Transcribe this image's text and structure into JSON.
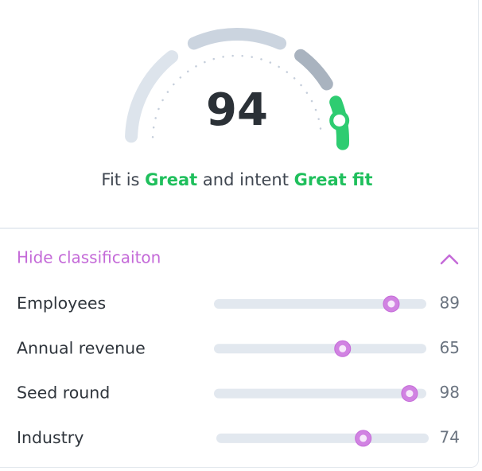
{
  "gauge": {
    "score": 94,
    "range": [
      0,
      100
    ],
    "summary": [
      "Fit is",
      "Great",
      "and intent",
      "Great fit"
    ]
  },
  "classification": {
    "toggle": "Hide classificaiton",
    "range": [
      0,
      100
    ],
    "rows": [
      {
        "label": "Employees",
        "value": 89
      },
      {
        "label": "Annual revenue",
        "value": 65
      },
      {
        "label": "Seed round",
        "value": 98
      },
      {
        "label": "Industry",
        "value": 74
      }
    ]
  }
}
